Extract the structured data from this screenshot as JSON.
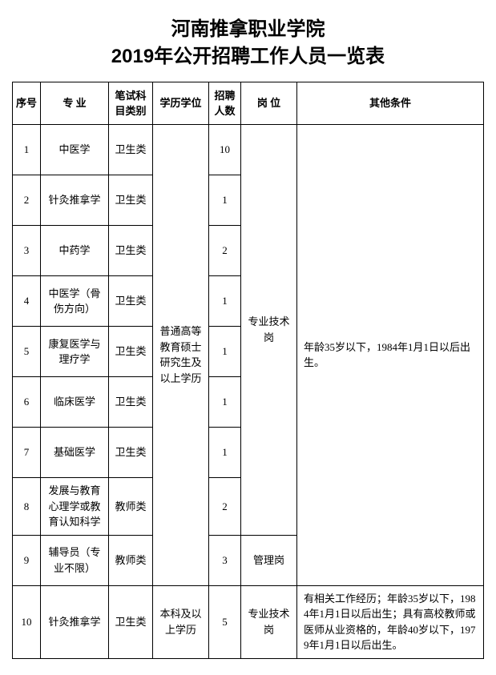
{
  "title_line1": "河南推拿职业学院",
  "title_line2": "2019年公开招聘工作人员一览表",
  "headers": {
    "idx": "序号",
    "major": "专 业",
    "exam": "笔试科目类别",
    "edu": "学历学位",
    "num": "招聘人数",
    "post": "岗 位",
    "other": "其他条件"
  },
  "edu_merged_1": "普通高等教育硕士研究生及以上学历",
  "post_merged_1": "专业技术岗",
  "other_merged_1": "年龄35岁以下，1984年1月1日以后出生。",
  "rows": [
    {
      "idx": "1",
      "major": "中医学",
      "exam": "卫生类",
      "num": "10"
    },
    {
      "idx": "2",
      "major": "针灸推拿学",
      "exam": "卫生类",
      "num": "1"
    },
    {
      "idx": "3",
      "major": "中药学",
      "exam": "卫生类",
      "num": "2"
    },
    {
      "idx": "4",
      "major": "中医学（骨伤方向）",
      "exam": "卫生类",
      "num": "1"
    },
    {
      "idx": "5",
      "major": "康复医学与理疗学",
      "exam": "卫生类",
      "num": "1"
    },
    {
      "idx": "6",
      "major": "临床医学",
      "exam": "卫生类",
      "num": "1"
    },
    {
      "idx": "7",
      "major": "基础医学",
      "exam": "卫生类",
      "num": "1"
    },
    {
      "idx": "8",
      "major": "发展与教育心理学或教育认知科学",
      "exam": "教师类",
      "num": "2"
    },
    {
      "idx": "9",
      "major": "辅导员（专业不限）",
      "exam": "教师类",
      "num": "3",
      "post": "管理岗"
    },
    {
      "idx": "10",
      "major": "针灸推拿学",
      "exam": "卫生类",
      "edu": "本科及以上学历",
      "num": "5",
      "post": "专业技术岗",
      "other": "有相关工作经历；年龄35岁以下，1984年1月1日以后出生；具有高校教师或医师从业资格的，年龄40岁以下，1979年1月1日以后出生。"
    }
  ],
  "colors": {
    "text": "#000000",
    "border": "#000000",
    "background": "#ffffff"
  },
  "typography": {
    "title_fontsize": 24,
    "cell_fontsize": 13,
    "title_font": "SimHei",
    "body_font": "SimSun"
  }
}
